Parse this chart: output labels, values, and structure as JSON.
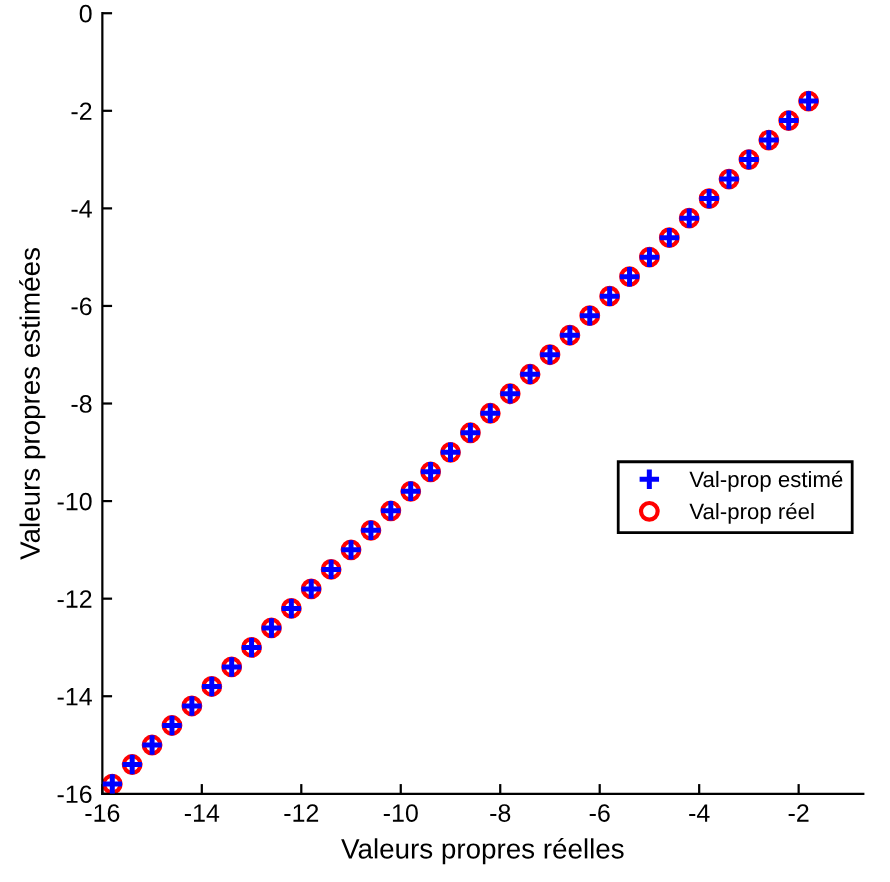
{
  "chart_data": {
    "type": "scatter",
    "xlabel": "Valeurs propres réelles",
    "ylabel": "Valeurs propres estimées",
    "x": [
      -15.8,
      -15.4,
      -15.0,
      -14.6,
      -14.2,
      -13.8,
      -13.4,
      -13.0,
      -12.6,
      -12.2,
      -11.8,
      -11.4,
      -11.0,
      -10.6,
      -10.2,
      -9.8,
      -9.4,
      -9.0,
      -8.6,
      -8.2,
      -7.8,
      -7.4,
      -7.0,
      -6.6,
      -6.2,
      -5.8,
      -5.4,
      -5.0,
      -4.6,
      -4.2,
      -3.8,
      -3.4,
      -3.0,
      -2.6,
      -2.2,
      -1.8
    ],
    "series": [
      {
        "name": "Val-prop estimé",
        "color": "#0000ff",
        "marker": "cross",
        "values": [
          -15.8,
          -15.4,
          -15.0,
          -14.6,
          -14.2,
          -13.8,
          -13.4,
          -13.0,
          -12.6,
          -12.2,
          -11.8,
          -11.4,
          -11.0,
          -10.6,
          -10.2,
          -9.8,
          -9.4,
          -9.0,
          -8.6,
          -8.2,
          -7.8,
          -7.4,
          -7.0,
          -6.6,
          -6.2,
          -5.8,
          -5.4,
          -5.0,
          -4.6,
          -4.2,
          -3.8,
          -3.4,
          -3.0,
          -2.6,
          -2.2,
          -1.8
        ]
      },
      {
        "name": "Val-prop réel",
        "color": "#ff0000",
        "marker": "circle",
        "values": [
          -15.8,
          -15.4,
          -15.0,
          -14.6,
          -14.2,
          -13.8,
          -13.4,
          -13.0,
          -12.6,
          -12.2,
          -11.8,
          -11.4,
          -11.0,
          -10.6,
          -10.2,
          -9.8,
          -9.4,
          -9.0,
          -8.6,
          -8.2,
          -7.8,
          -7.4,
          -7.0,
          -6.6,
          -6.2,
          -5.8,
          -5.4,
          -5.0,
          -4.6,
          -4.2,
          -3.8,
          -3.4,
          -3.0,
          -2.6,
          -2.2,
          -1.8
        ]
      }
    ],
    "xlim": [
      -16,
      -0.7
    ],
    "ylim": [
      -16,
      0
    ],
    "xticks": [
      -16,
      -14,
      -12,
      -10,
      -8,
      -6,
      -4,
      -2
    ],
    "yticks": [
      -16,
      -14,
      -12,
      -10,
      -8,
      -6,
      -4,
      -2,
      0
    ],
    "grid": false,
    "legend": "right"
  }
}
